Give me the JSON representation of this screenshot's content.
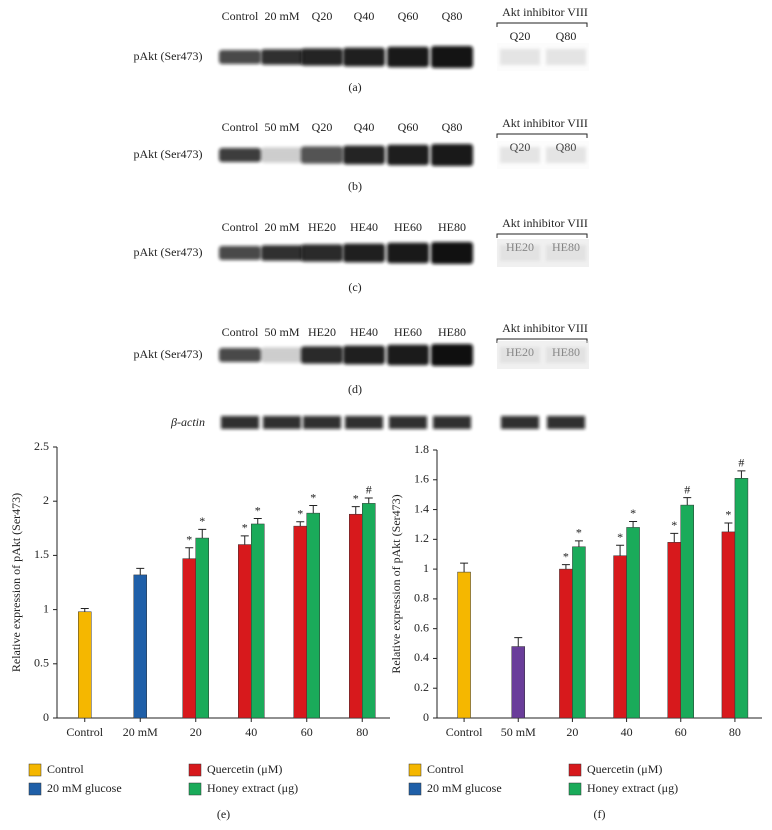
{
  "blots": [
    {
      "lanes": [
        "Control",
        "20 mM",
        "Q20",
        "Q40",
        "Q60",
        "Q80"
      ],
      "label": "pAkt (Ser473)",
      "inhibitor": "Akt inhibitor VIII",
      "inhibitor_lanes": [
        "Q20",
        "Q80"
      ],
      "caption": "(a)"
    },
    {
      "lanes": [
        "Control",
        "50 mM",
        "Q20",
        "Q40",
        "Q60",
        "Q80"
      ],
      "label": "pAkt (Ser473)",
      "inhibitor": "Akt inhibitor VIII",
      "inhibitor_lanes": [
        "Q20",
        "Q80"
      ],
      "caption": "(b)"
    },
    {
      "lanes": [
        "Control",
        "20 mM",
        "HE20",
        "HE40",
        "HE60",
        "HE80"
      ],
      "label": "pAkt (Ser473)",
      "inhibitor": "Akt inhibitor VIII",
      "inhibitor_lanes": [
        "HE20",
        "HE80"
      ],
      "caption": "(c)"
    },
    {
      "lanes": [
        "Control",
        "50 mM",
        "HE20",
        "HE40",
        "HE60",
        "HE80"
      ],
      "label": "pAkt (Ser473)",
      "inhibitor": "Akt inhibitor VIII",
      "inhibitor_lanes": [
        "HE20",
        "HE80"
      ],
      "caption": "(d)"
    }
  ],
  "loading_control": "β-actin",
  "chart_data": [
    {
      "type": "bar",
      "caption": "(e)",
      "y_label": "Relative expression of pAkt (Ser473)",
      "categories": [
        "Control",
        "20 mM",
        "20",
        "40",
        "60",
        "80"
      ],
      "ylim": [
        0,
        2.5
      ],
      "yticks": [
        0,
        0.5,
        1,
        1.5,
        2,
        2.5
      ],
      "series": [
        {
          "name": "Control",
          "color": "#f5b700",
          "values": [
            0.98,
            null,
            null,
            null,
            null,
            null
          ],
          "errors": [
            0.03,
            null,
            null,
            null,
            null,
            null
          ],
          "annotations": [
            null,
            null,
            null,
            null,
            null,
            null
          ]
        },
        {
          "name": "20 mM glucose",
          "color": "#1f5fa8",
          "values": [
            null,
            1.32,
            null,
            null,
            null,
            null
          ],
          "errors": [
            null,
            0.06,
            null,
            null,
            null,
            null
          ],
          "annotations": [
            null,
            null,
            null,
            null,
            null,
            null
          ]
        },
        {
          "name": "Quercetin (μM)",
          "color": "#d7191c",
          "values": [
            null,
            null,
            1.47,
            1.6,
            1.77,
            1.88
          ],
          "errors": [
            null,
            null,
            0.1,
            0.08,
            0.04,
            0.07
          ],
          "annotations": [
            null,
            null,
            "*",
            "*",
            "*",
            "*"
          ]
        },
        {
          "name": "Honey extract (μg)",
          "color": "#1aab5a",
          "values": [
            null,
            null,
            1.66,
            1.79,
            1.89,
            1.98
          ],
          "errors": [
            null,
            null,
            0.08,
            0.05,
            0.07,
            0.05
          ],
          "annotations": [
            null,
            null,
            "*",
            "*",
            "*",
            "#"
          ]
        }
      ]
    },
    {
      "type": "bar",
      "caption": "(f)",
      "y_label": "Relative expression of pAkt (Ser473)",
      "categories": [
        "Control",
        "50 mM",
        "20",
        "40",
        "60",
        "80"
      ],
      "ylim": [
        0,
        1.8
      ],
      "yticks": [
        0,
        0.2,
        0.4,
        0.6,
        0.8,
        1,
        1.2,
        1.4,
        1.6,
        1.8
      ],
      "series": [
        {
          "name": "Control",
          "color": "#f5b700",
          "values": [
            0.98,
            null,
            null,
            null,
            null,
            null
          ],
          "errors": [
            0.06,
            null,
            null,
            null,
            null,
            null
          ],
          "annotations": [
            null,
            null,
            null,
            null,
            null,
            null
          ]
        },
        {
          "name": "20 mM glucose",
          "color": "#6a3d9a",
          "legend_color": "#1f5fa8",
          "values": [
            null,
            0.48,
            null,
            null,
            null,
            null
          ],
          "errors": [
            null,
            0.06,
            null,
            null,
            null,
            null
          ],
          "annotations": [
            null,
            null,
            null,
            null,
            null,
            null
          ]
        },
        {
          "name": "Quercetin (μM)",
          "color": "#d7191c",
          "values": [
            null,
            null,
            1.0,
            1.09,
            1.18,
            1.25
          ],
          "errors": [
            null,
            null,
            0.03,
            0.07,
            0.06,
            0.06
          ],
          "annotations": [
            null,
            null,
            "*",
            "*",
            "*",
            "*"
          ]
        },
        {
          "name": "Honey extract (μg)",
          "color": "#1aab5a",
          "values": [
            null,
            null,
            1.15,
            1.28,
            1.43,
            1.61
          ],
          "errors": [
            null,
            null,
            0.04,
            0.04,
            0.05,
            0.05
          ],
          "annotations": [
            null,
            null,
            "*",
            "*",
            "#",
            "#"
          ]
        }
      ]
    }
  ]
}
